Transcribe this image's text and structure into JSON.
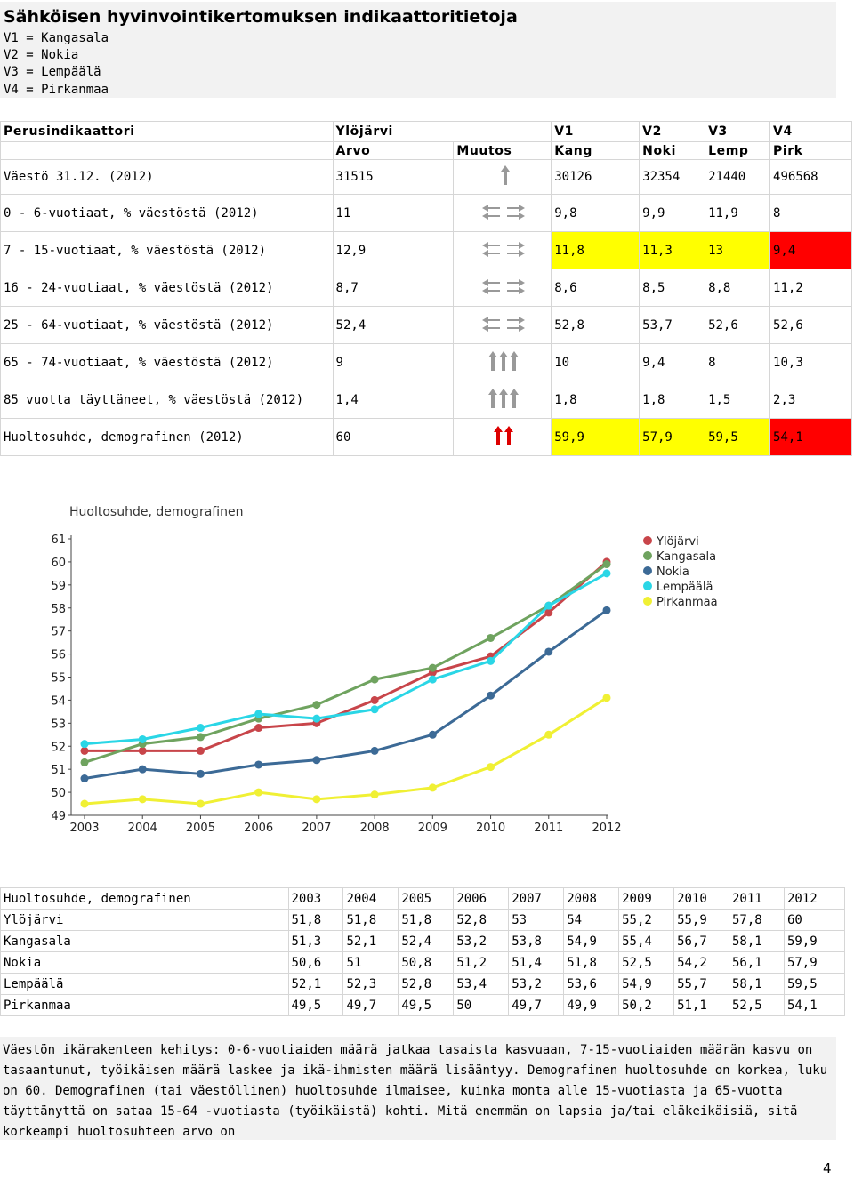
{
  "header": {
    "title": "Sähköisen hyvinvointikertomuksen indikaattoritietoja",
    "legend": [
      "V1 = Kangasala",
      "V2 = Nokia",
      "V3 = Lempäälä",
      "V4 = Pirkanmaa"
    ]
  },
  "indicators": {
    "col_headers": {
      "indicator": "Perusindikaattori",
      "municipality": "Ylöjärvi",
      "value": "Arvo",
      "change": "Muutos",
      "v1": "V1",
      "v1_short": "Kang",
      "v2": "V2",
      "v2_short": "Noki",
      "v3": "V3",
      "v3_short": "Lemp",
      "v4": "V4",
      "v4_short": "Pirk"
    },
    "rows": [
      {
        "label": "Väestö 31.12. (2012)",
        "value": "31515",
        "trend": "up",
        "v1": "30126",
        "v2": "32354",
        "v3": "21440",
        "v4": "496568",
        "v1_bg": "",
        "v2_bg": "",
        "v3_bg": "",
        "v4_bg": ""
      },
      {
        "label": "0 - 6-vuotiaat, % väestöstä (2012)",
        "value": "11",
        "trend": "flat",
        "v1": "9,8",
        "v2": "9,9",
        "v3": "11,9",
        "v4": "8",
        "v1_bg": "",
        "v2_bg": "",
        "v3_bg": "",
        "v4_bg": ""
      },
      {
        "label": "7 - 15-vuotiaat, % väestöstä (2012)",
        "value": "12,9",
        "trend": "flat",
        "v1": "11,8",
        "v2": "11,3",
        "v3": "13",
        "v4": "9,4",
        "v1_bg": "yellow",
        "v2_bg": "yellow",
        "v3_bg": "yellow",
        "v4_bg": "red"
      },
      {
        "label": "16 - 24-vuotiaat, % väestöstä (2012)",
        "value": "8,7",
        "trend": "flat",
        "v1": "8,6",
        "v2": "8,5",
        "v3": "8,8",
        "v4": "11,2",
        "v1_bg": "",
        "v2_bg": "",
        "v3_bg": "",
        "v4_bg": ""
      },
      {
        "label": "25 - 64-vuotiaat, % väestöstä (2012)",
        "value": "52,4",
        "trend": "flat",
        "v1": "52,8",
        "v2": "53,7",
        "v3": "52,6",
        "v4": "52,6",
        "v1_bg": "",
        "v2_bg": "",
        "v3_bg": "",
        "v4_bg": ""
      },
      {
        "label": "65 - 74-vuotiaat, % väestöstä (2012)",
        "value": "9",
        "trend": "up3",
        "v1": "10",
        "v2": "9,4",
        "v3": "8",
        "v4": "10,3",
        "v1_bg": "",
        "v2_bg": "",
        "v3_bg": "",
        "v4_bg": ""
      },
      {
        "label": "85 vuotta täyttäneet, % väestöstä (2012)",
        "value": "1,4",
        "trend": "up3",
        "v1": "1,8",
        "v2": "1,8",
        "v3": "1,5",
        "v4": "2,3",
        "v1_bg": "",
        "v2_bg": "",
        "v3_bg": "",
        "v4_bg": ""
      },
      {
        "label": "Huoltosuhde, demografinen (2012)",
        "value": "60",
        "trend": "up2red",
        "v1": "59,9",
        "v2": "57,9",
        "v3": "59,5",
        "v4": "54,1",
        "v1_bg": "yellow",
        "v2_bg": "yellow",
        "v3_bg": "yellow",
        "v4_bg": "red"
      }
    ]
  },
  "chart_data": {
    "type": "line",
    "title": "Huoltosuhde, demografinen",
    "x": [
      "2003",
      "2004",
      "2005",
      "2006",
      "2007",
      "2008",
      "2009",
      "2010",
      "2011",
      "2012"
    ],
    "ylim": [
      49,
      61
    ],
    "yticks": [
      "49",
      "50",
      "51",
      "52",
      "53",
      "54",
      "55",
      "56",
      "57",
      "58",
      "59",
      "60",
      "61"
    ],
    "legend_position": "top-right",
    "series": [
      {
        "name": "Ylöjärvi",
        "color": "#c8454a",
        "values": [
          51.8,
          51.8,
          51.8,
          52.8,
          53,
          54,
          55.2,
          55.9,
          57.8,
          60
        ]
      },
      {
        "name": "Kangasala",
        "color": "#6fa35f",
        "values": [
          51.3,
          52.1,
          52.4,
          53.2,
          53.8,
          54.9,
          55.4,
          56.7,
          58.1,
          59.9
        ]
      },
      {
        "name": "Nokia",
        "color": "#3c6a96",
        "values": [
          50.6,
          51,
          50.8,
          51.2,
          51.4,
          51.8,
          52.5,
          54.2,
          56.1,
          57.9
        ]
      },
      {
        "name": "Lempäälä",
        "color": "#2ad6e6",
        "values": [
          52.1,
          52.3,
          52.8,
          53.4,
          53.2,
          53.6,
          54.9,
          55.7,
          58.1,
          59.5
        ]
      },
      {
        "name": "Pirkanmaa",
        "color": "#f0f034",
        "values": [
          49.5,
          49.7,
          49.5,
          50,
          49.7,
          49.9,
          50.2,
          51.1,
          52.5,
          54.1
        ]
      }
    ]
  },
  "data_table": {
    "header": [
      "Huoltosuhde, demografinen",
      "2003",
      "2004",
      "2005",
      "2006",
      "2007",
      "2008",
      "2009",
      "2010",
      "2011",
      "2012"
    ],
    "rows": [
      [
        "Ylöjärvi",
        "51,8",
        "51,8",
        "51,8",
        "52,8",
        "53",
        "54",
        "55,2",
        "55,9",
        "57,8",
        "60"
      ],
      [
        "Kangasala",
        "51,3",
        "52,1",
        "52,4",
        "53,2",
        "53,8",
        "54,9",
        "55,4",
        "56,7",
        "58,1",
        "59,9"
      ],
      [
        "Nokia",
        "50,6",
        "51",
        "50,8",
        "51,2",
        "51,4",
        "51,8",
        "52,5",
        "54,2",
        "56,1",
        "57,9"
      ],
      [
        "Lempäälä",
        "52,1",
        "52,3",
        "52,8",
        "53,4",
        "53,2",
        "53,6",
        "54,9",
        "55,7",
        "58,1",
        "59,5"
      ],
      [
        "Pirkanmaa",
        "49,5",
        "49,7",
        "49,5",
        "50",
        "49,7",
        "49,9",
        "50,2",
        "51,1",
        "52,5",
        "54,1"
      ]
    ]
  },
  "note": {
    "text": "Väestön ikärakenteen kehitys: 0-6-vuotiaiden määrä jatkaa tasaista kasvuaan, 7-15-vuotiaiden määrän kasvu on tasaantunut, työikäisen määrä laskee ja ikä-ihmisten määrä lisääntyy. Demografinen huoltosuhde on korkea, luku on 60. Demografinen (tai väestöllinen) huoltosuhde ilmaisee, kuinka monta alle 15-vuotiasta ja 65-vuotta täyttänyttä on sataa 15-64 -vuotiasta (työikäistä) kohti. Mitä enemmän on lapsia ja/tai eläkeikäisiä, sitä korkeampi huoltosuhteen arvo on"
  },
  "page_number": "4"
}
